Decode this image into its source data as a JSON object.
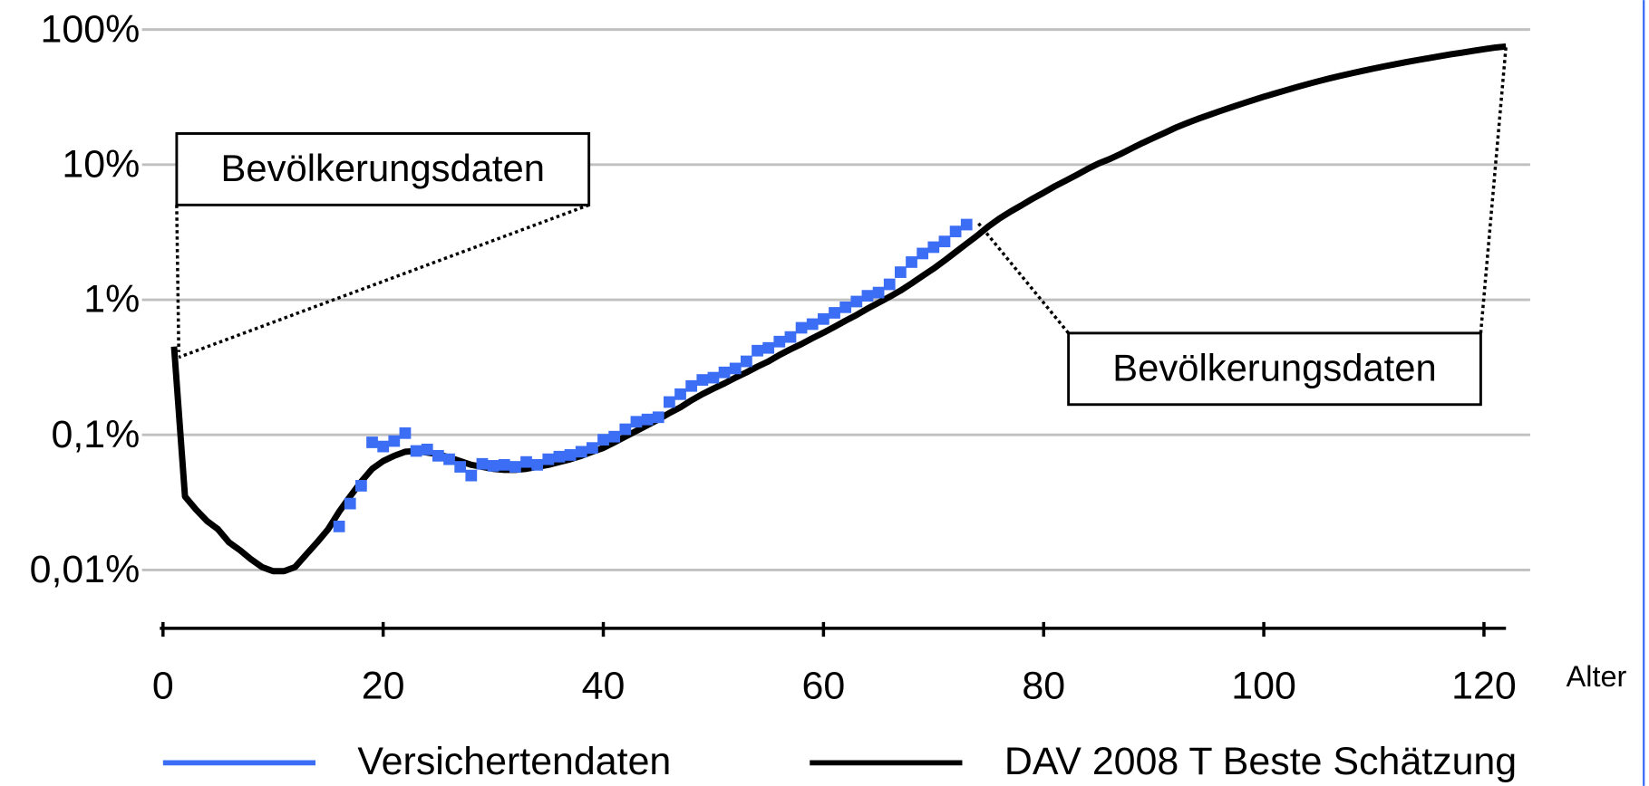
{
  "chart_data": {
    "type": "line",
    "x_label": "Alter",
    "xlim": [
      0,
      122
    ],
    "xticks": [
      0,
      20,
      40,
      60,
      80,
      100,
      120
    ],
    "ylim": [
      0.0037,
      100
    ],
    "log_y": true,
    "grid": true,
    "yticks": [
      {
        "value": 0.01,
        "label": "0,01%"
      },
      {
        "value": 0.1,
        "label": "0,1%"
      },
      {
        "value": 1,
        "label": "1%"
      },
      {
        "value": 10,
        "label": "10%"
      },
      {
        "value": 100,
        "label": "100%"
      }
    ],
    "annotations": [
      "Bevölkerungsdaten",
      "Bevölkerungsdaten"
    ],
    "series": [
      {
        "name": "Versichertendaten",
        "color": "#3b6ef5",
        "marker": "square",
        "x": [
          16,
          17,
          18,
          19,
          20,
          21,
          22,
          23,
          24,
          25,
          26,
          27,
          28,
          29,
          30,
          31,
          32,
          33,
          34,
          35,
          36,
          37,
          38,
          39,
          40,
          41,
          42,
          43,
          44,
          45,
          46,
          47,
          48,
          49,
          50,
          51,
          52,
          53,
          54,
          55,
          56,
          57,
          58,
          59,
          60,
          61,
          62,
          63,
          64,
          65,
          66,
          67,
          68,
          69,
          70,
          71,
          72,
          73
        ],
        "values": [
          0.021,
          0.031,
          0.042,
          0.088,
          0.082,
          0.09,
          0.103,
          0.076,
          0.078,
          0.07,
          0.066,
          0.058,
          0.05,
          0.061,
          0.059,
          0.06,
          0.058,
          0.063,
          0.06,
          0.066,
          0.069,
          0.071,
          0.075,
          0.08,
          0.092,
          0.097,
          0.11,
          0.125,
          0.13,
          0.135,
          0.175,
          0.2,
          0.23,
          0.255,
          0.265,
          0.29,
          0.31,
          0.35,
          0.42,
          0.44,
          0.49,
          0.53,
          0.62,
          0.66,
          0.72,
          0.8,
          0.88,
          0.97,
          1.07,
          1.13,
          1.3,
          1.6,
          1.9,
          2.2,
          2.45,
          2.7,
          3.2,
          3.6
        ]
      },
      {
        "name": "DAV 2008 T Beste Schätzung",
        "color": "#000000",
        "marker": "none",
        "x": [
          1,
          2,
          3,
          4,
          5,
          6,
          7,
          8,
          9,
          10,
          11,
          12,
          13,
          14,
          15,
          16,
          17,
          18,
          19,
          20,
          21,
          22,
          23,
          24,
          25,
          26,
          27,
          28,
          29,
          30,
          31,
          32,
          33,
          34,
          35,
          36,
          37,
          38,
          39,
          40,
          41,
          42,
          43,
          44,
          45,
          46,
          47,
          48,
          49,
          50,
          51,
          52,
          53,
          54,
          55,
          56,
          57,
          58,
          59,
          60,
          61,
          62,
          63,
          64,
          65,
          66,
          67,
          68,
          69,
          70,
          71,
          72,
          73,
          74,
          75,
          76,
          77,
          78,
          79,
          80,
          81,
          82,
          83,
          84,
          85,
          86,
          87,
          88,
          89,
          90,
          91,
          92,
          93,
          94,
          95,
          96,
          97,
          98,
          99,
          100,
          101,
          102,
          103,
          104,
          105,
          106,
          107,
          108,
          109,
          110,
          111,
          112,
          113,
          114,
          115,
          116,
          117,
          118,
          119,
          120,
          121,
          122
        ],
        "values": [
          0.45,
          0.035,
          0.028,
          0.023,
          0.02,
          0.016,
          0.014,
          0.012,
          0.0105,
          0.0098,
          0.0098,
          0.0105,
          0.013,
          0.016,
          0.02,
          0.027,
          0.035,
          0.045,
          0.056,
          0.064,
          0.07,
          0.075,
          0.076,
          0.074,
          0.072,
          0.068,
          0.064,
          0.06,
          0.058,
          0.056,
          0.055,
          0.055,
          0.056,
          0.058,
          0.06,
          0.063,
          0.066,
          0.07,
          0.075,
          0.08,
          0.088,
          0.097,
          0.107,
          0.118,
          0.13,
          0.145,
          0.16,
          0.18,
          0.2,
          0.22,
          0.24,
          0.265,
          0.29,
          0.32,
          0.35,
          0.39,
          0.43,
          0.47,
          0.52,
          0.57,
          0.63,
          0.7,
          0.77,
          0.86,
          0.95,
          1.05,
          1.17,
          1.32,
          1.5,
          1.7,
          1.95,
          2.25,
          2.6,
          3.0,
          3.5,
          4.0,
          4.5,
          5.0,
          5.6,
          6.2,
          6.9,
          7.6,
          8.4,
          9.3,
          10.2,
          11,
          12,
          13.2,
          14.5,
          15.8,
          17.2,
          18.8,
          20.3,
          21.8,
          23.3,
          24.9,
          26.5,
          28.2,
          30,
          31.8,
          33.6,
          35.5,
          37.5,
          39.5,
          41.5,
          43.5,
          45.5,
          47.5,
          49.5,
          51.5,
          53.5,
          55.5,
          57.5,
          59.5,
          61.5,
          63.5,
          65.5,
          67.5,
          69.5,
          71.5,
          73.5,
          75
        ]
      }
    ]
  }
}
